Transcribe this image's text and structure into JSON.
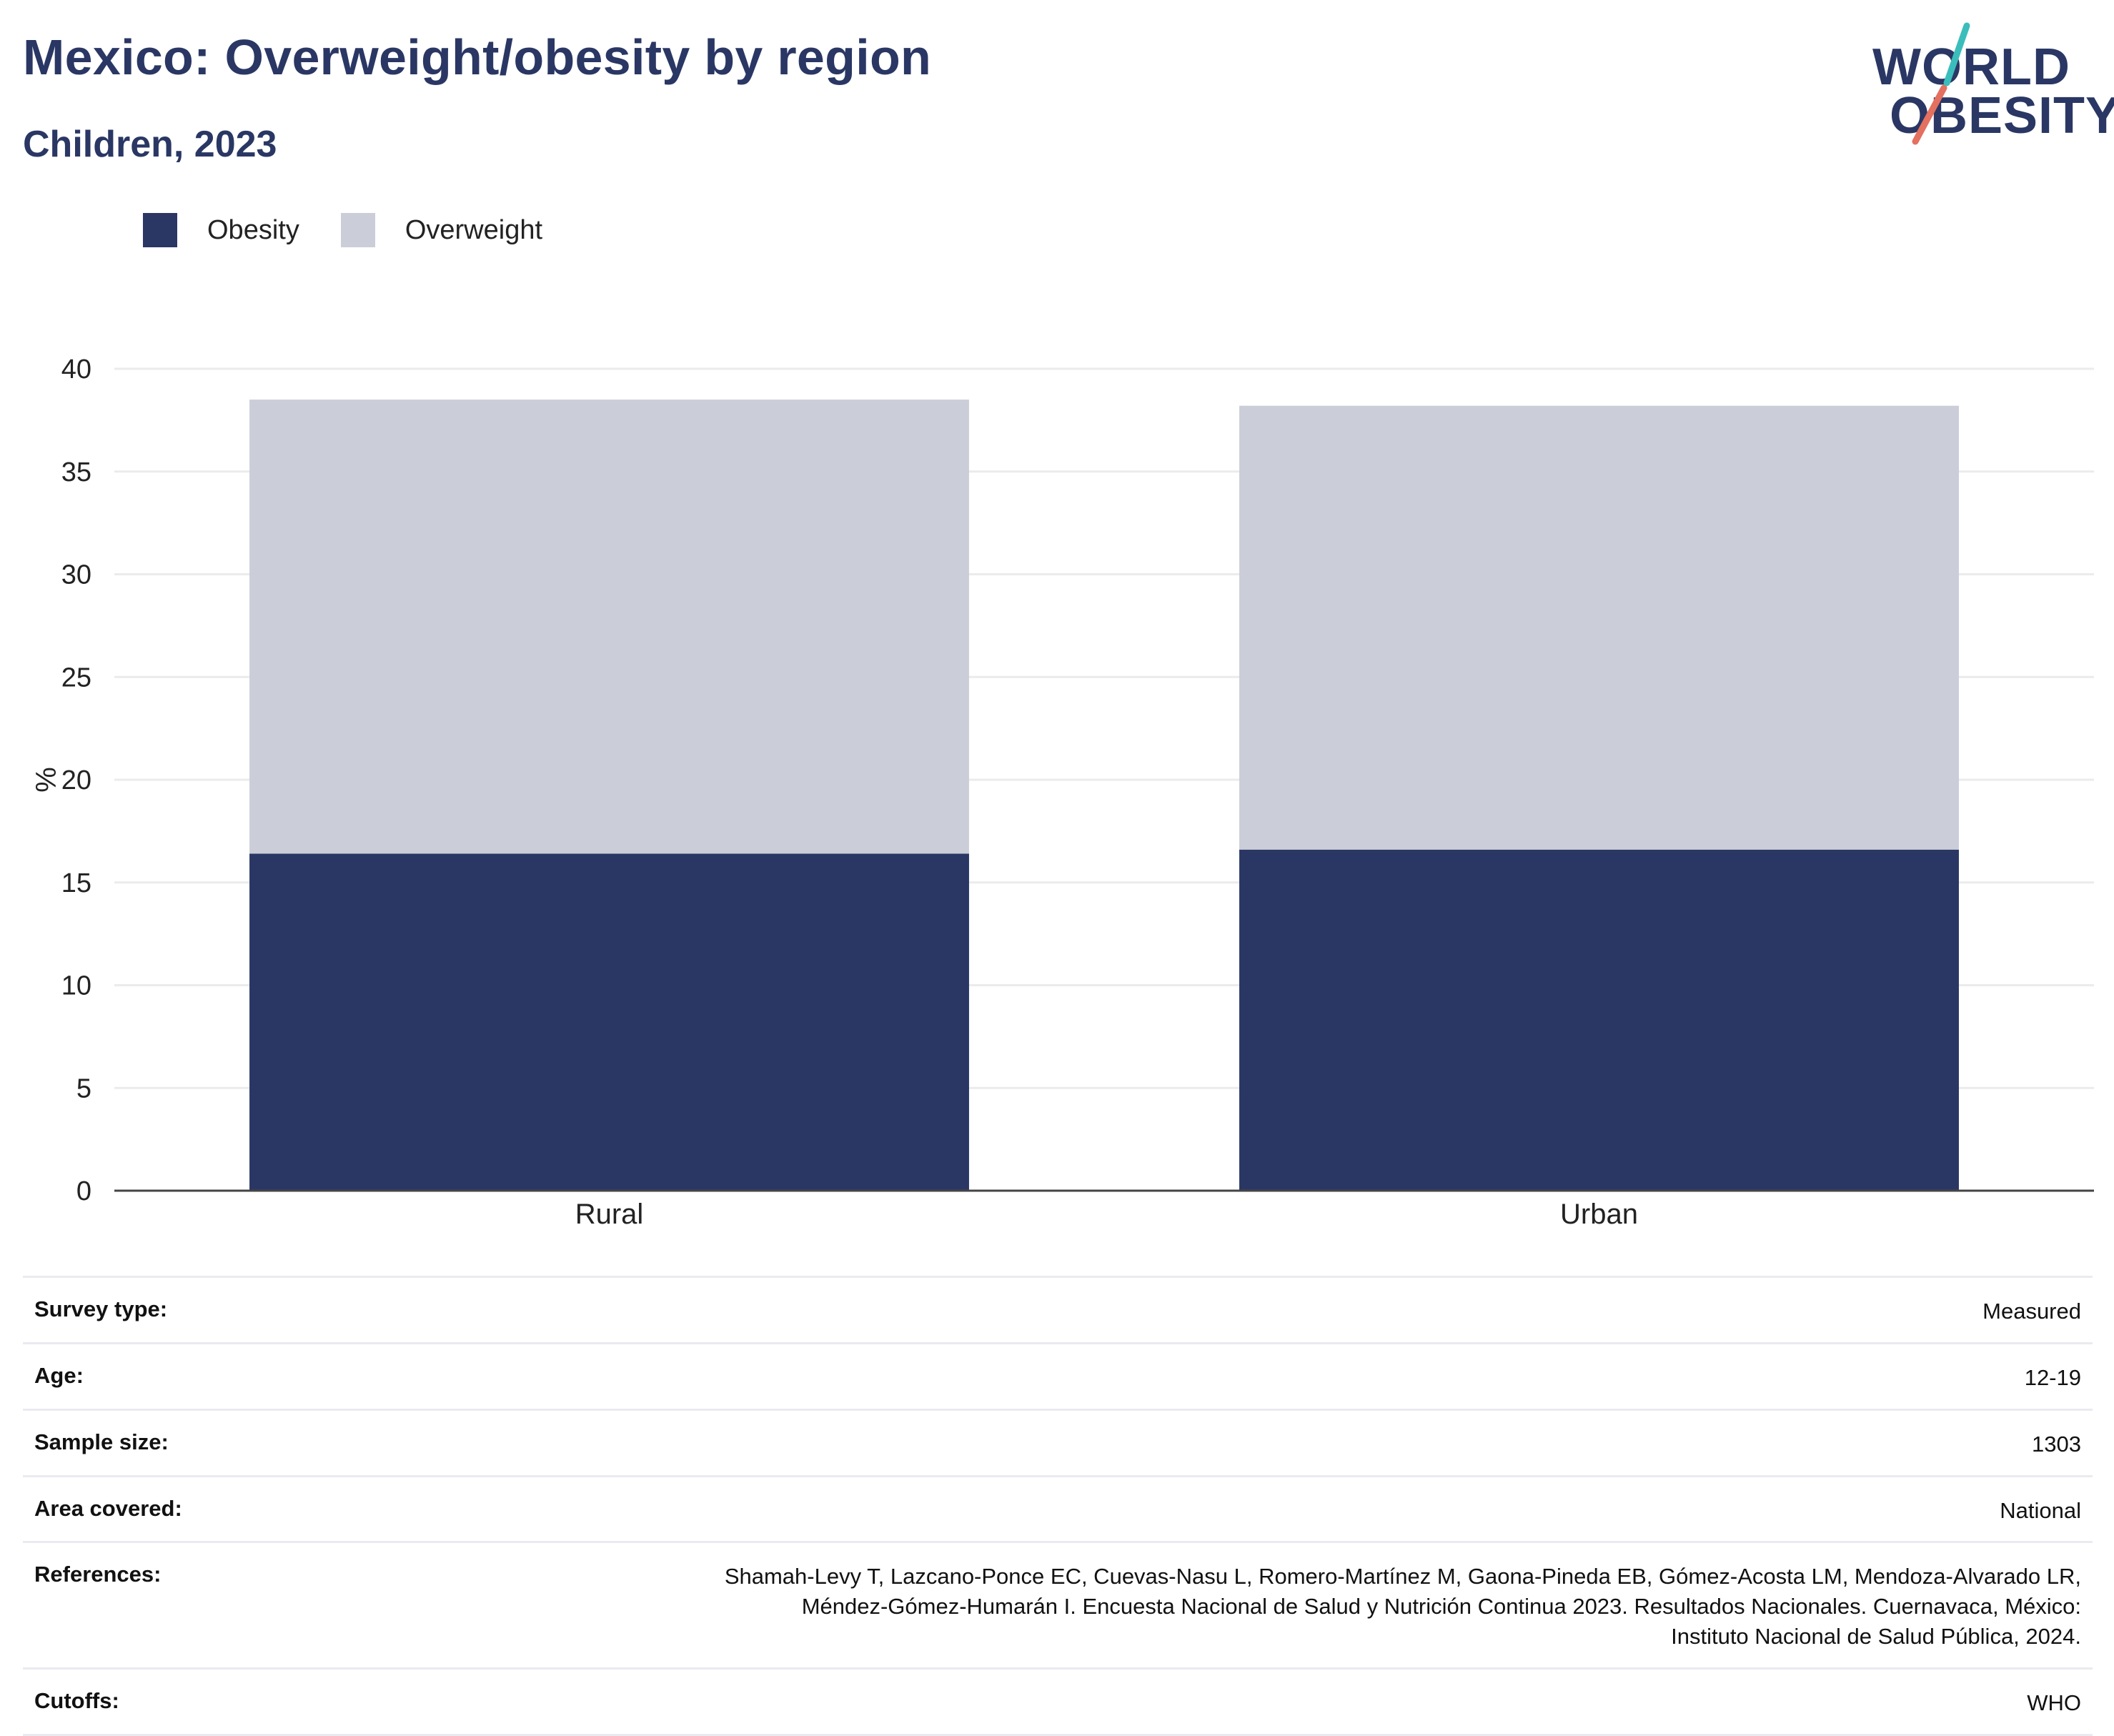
{
  "header": {
    "title": "Mexico: Overweight/obesity by region",
    "subtitle": "Children, 2023"
  },
  "logo": {
    "line1": "WORLD",
    "line2": "OBESITY"
  },
  "colors": {
    "obesity": "#2a3764",
    "overweight": "#cbcdd8",
    "grid": "#ebebeb",
    "axis": "#444444"
  },
  "legend": [
    {
      "label": "Obesity",
      "color": "#2a3764"
    },
    {
      "label": "Overweight",
      "color": "#cbcdd8"
    }
  ],
  "chart_data": {
    "type": "bar",
    "stacked": true,
    "categories": [
      "Rural",
      "Urban"
    ],
    "series": [
      {
        "name": "Obesity",
        "values": [
          16.4,
          16.6
        ]
      },
      {
        "name": "Overweight",
        "values": [
          22.1,
          21.6
        ]
      }
    ],
    "ylabel": "%",
    "ylim": [
      0,
      40
    ],
    "yticks": [
      0,
      5,
      10,
      15,
      20,
      25,
      30,
      35,
      40
    ],
    "grid": true,
    "legend_position": "top-left"
  },
  "meta": [
    {
      "key": "Survey type:",
      "value": "Measured"
    },
    {
      "key": "Age:",
      "value": "12-19"
    },
    {
      "key": "Sample size:",
      "value": "1303"
    },
    {
      "key": "Area covered:",
      "value": "National"
    },
    {
      "key": "References:",
      "value_lines": [
        "Shamah-Levy T, Lazcano-Ponce EC, Cuevas-Nasu L, Romero-Martínez M, Gaona-Pineda EB, Gómez-Acosta LM, Mendoza-Alvarado LR,",
        "Méndez-Gómez-Humarán I. Encuesta Nacional de Salud y Nutrición Continua 2023. Resultados Nacionales. Cuernavaca, México:",
        "Instituto Nacional de Salud Pública, 2024."
      ]
    },
    {
      "key": "Cutoffs:",
      "value": "WHO"
    }
  ]
}
